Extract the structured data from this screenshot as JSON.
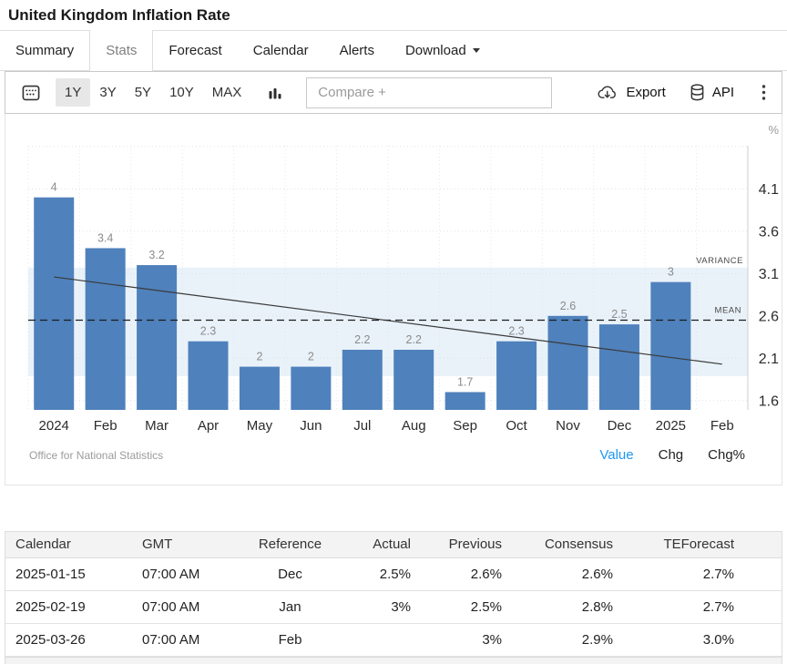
{
  "header": {
    "title": "United Kingdom Inflation Rate"
  },
  "tabs": [
    {
      "label": "Summary",
      "active": false
    },
    {
      "label": "Stats",
      "active": true
    },
    {
      "label": "Forecast",
      "active": false
    },
    {
      "label": "Calendar",
      "active": false
    },
    {
      "label": "Alerts",
      "active": false
    },
    {
      "label": "Download",
      "active": false,
      "has_dropdown": true
    }
  ],
  "toolbar": {
    "ranges": [
      "1Y",
      "3Y",
      "5Y",
      "10Y",
      "MAX"
    ],
    "active_range": "1Y",
    "compare_placeholder": "Compare +",
    "export_label": "Export",
    "api_label": "API",
    "icons": [
      "calendar-icon",
      "column-chart-icon",
      "cloud-download-icon",
      "database-icon",
      "kebab-menu-icon"
    ]
  },
  "chart": {
    "toggles": [
      {
        "label": "Value",
        "active": true
      },
      {
        "label": "Chg",
        "active": false
      },
      {
        "label": "Chg%",
        "active": false
      }
    ],
    "accent_color": "#1f97f3"
  },
  "chart_data": {
    "type": "bar",
    "title": "United Kingdom Inflation Rate",
    "unit": "%",
    "categories": [
      "2024",
      "Feb",
      "Mar",
      "Apr",
      "May",
      "Jun",
      "Jul",
      "Aug",
      "Sep",
      "Oct",
      "Nov",
      "Dec",
      "2025",
      "Feb"
    ],
    "values": [
      4,
      3.4,
      3.2,
      2.3,
      2,
      2,
      2.2,
      2.2,
      1.7,
      2.3,
      2.6,
      2.5,
      3,
      null
    ],
    "yticks": [
      1.6,
      2.1,
      2.6,
      3.1,
      3.6,
      4.1
    ],
    "grid_yticks": [
      1.6,
      2.1,
      2.6,
      3.1,
      3.6,
      4.1,
      4.6
    ],
    "ylim": [
      1.49,
      4.61
    ],
    "mean": 2.55,
    "variance_band": [
      1.89,
      3.17
    ],
    "trend": {
      "start_value": 3.06,
      "end_value": 2.03
    },
    "annotations": {
      "variance_label": "VARIANCE",
      "mean_label": "MEAN"
    },
    "source": "Office for National Statistics",
    "bar_color": "#4f81bc",
    "band_color": "#e9f2f9",
    "grid": true,
    "legend_position": "none",
    "xlabel": "",
    "ylabel": "%"
  },
  "table": {
    "headers": [
      "Calendar",
      "GMT",
      "Reference",
      "Actual",
      "Previous",
      "Consensus",
      "TEForecast"
    ],
    "rows": [
      [
        "2025-01-15",
        "07:00 AM",
        "Dec",
        "2.5%",
        "2.6%",
        "2.6%",
        "2.7%"
      ],
      [
        "2025-02-19",
        "07:00 AM",
        "Jan",
        "3%",
        "2.5%",
        "2.8%",
        "2.7%"
      ],
      [
        "2025-03-26",
        "07:00 AM",
        "Feb",
        "",
        "3%",
        "2.9%",
        "3.0%"
      ]
    ]
  }
}
